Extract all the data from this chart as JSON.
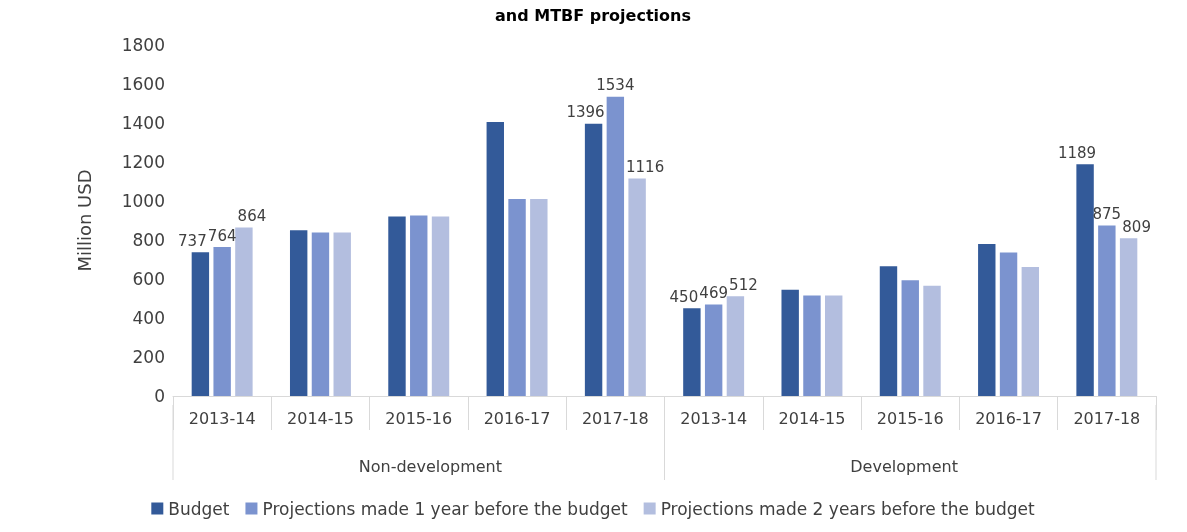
{
  "chart_data": {
    "type": "bar",
    "title": "and MTBF projections",
    "ylabel": "Million USD",
    "categories": [
      "2013-14",
      "2014-15",
      "2015-16",
      "2016-17",
      "2017-18",
      "2013-14",
      "2014-15",
      "2015-16",
      "2016-17",
      "2017-18"
    ],
    "series": [
      {
        "name": "Budget",
        "color": "#335a99",
        "values": [
          737,
          850,
          920,
          1405,
          1396,
          450,
          545,
          665,
          779,
          1189
        ],
        "value_labels": [
          "737",
          null,
          null,
          null,
          "1396",
          "450",
          null,
          null,
          null,
          "1189"
        ]
      },
      {
        "name": "Projections made 1 year before the budget",
        "color": "#7b93cf",
        "values": [
          764,
          838,
          926,
          1010,
          1534,
          469,
          516,
          594,
          736,
          875
        ],
        "value_labels": [
          "764",
          null,
          null,
          null,
          "1534",
          "469",
          null,
          null,
          null,
          "875"
        ]
      },
      {
        "name": "Projections made 2 years before the budget",
        "color": "#b3bedf",
        "values": [
          864,
          838,
          920,
          1010,
          1116,
          512,
          516,
          566,
          661,
          809
        ],
        "value_labels": [
          "864",
          null,
          null,
          null,
          "1116",
          "512",
          null,
          null,
          null,
          "809"
        ]
      }
    ],
    "annotations": [
      "Non-development",
      "Development"
    ],
    "ylim": [
      0,
      1800
    ],
    "yticks": [
      0,
      200,
      400,
      600,
      800,
      1000,
      1200,
      1400,
      1600,
      1800
    ],
    "grid": false,
    "legend": "bottom"
  }
}
